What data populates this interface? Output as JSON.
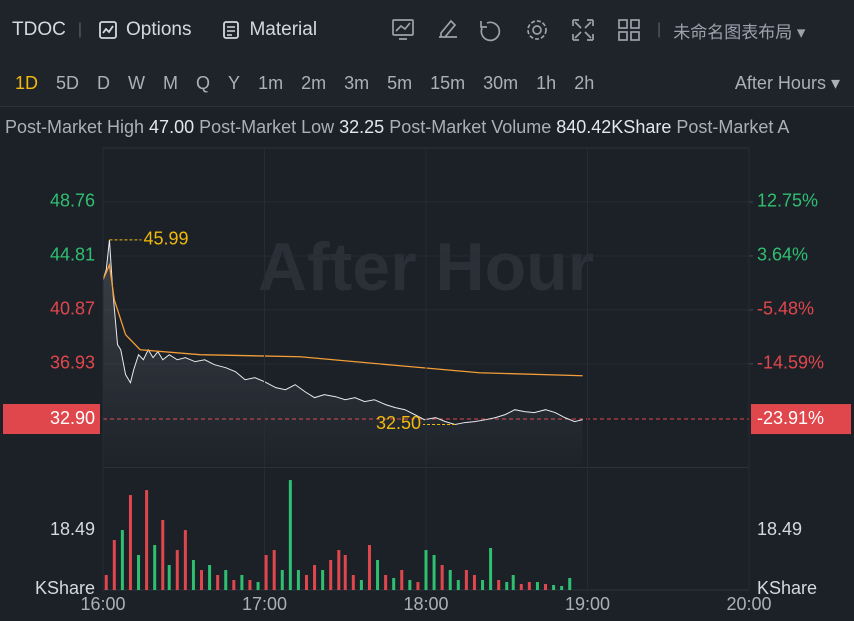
{
  "toolbar": {
    "symbol": "TDOC",
    "options": "Options",
    "material": "Material",
    "layout": "未命名图表布局"
  },
  "timeframes": [
    {
      "label": "1D",
      "selected": true
    },
    {
      "label": "5D"
    },
    {
      "label": "D"
    },
    {
      "label": "W"
    },
    {
      "label": "M"
    },
    {
      "label": "Q"
    },
    {
      "label": "Y"
    },
    {
      "label": "1m"
    },
    {
      "label": "2m"
    },
    {
      "label": "3m"
    },
    {
      "label": "5m"
    },
    {
      "label": "15m"
    },
    {
      "label": "30m"
    },
    {
      "label": "1h"
    },
    {
      "label": "2h"
    }
  ],
  "session": "After Hours",
  "stats": [
    {
      "label": "Post-Market High",
      "value": "47.00"
    },
    {
      "label": "Post-Market Low",
      "value": "32.25"
    },
    {
      "label": "Post-Market Volume",
      "value": "840.42KShare"
    },
    {
      "label": "Post-Market A"
    }
  ],
  "chart_data": [
    {
      "type": "line",
      "watermark": "After Hour",
      "grid": true,
      "xlim": [
        16,
        20
      ],
      "ylim": [
        29.54,
        52.7
      ],
      "yticks": [
        48.76,
        44.81,
        40.87,
        36.93
      ],
      "y2lim": [
        -31.67,
        21.86
      ],
      "y2ticks": [
        {
          "value": 12.75,
          "label": "12.75%"
        },
        {
          "value": 3.64,
          "label": "3.64%"
        },
        {
          "value": -5.48,
          "label": "-5.48%"
        },
        {
          "value": -14.59,
          "label": "-14.59%"
        }
      ],
      "last": {
        "value": 32.9,
        "label": "32.90"
      },
      "last_change": {
        "value": -23.91,
        "label": "-23.91%"
      },
      "series": [
        {
          "color": "#e8eaed",
          "x": [
            16.0,
            16.02,
            16.04,
            16.06,
            16.09,
            16.11,
            16.14,
            16.17,
            16.19,
            16.22,
            16.25,
            16.28,
            16.31,
            16.34,
            16.37,
            16.41,
            16.46,
            16.51,
            16.57,
            16.63,
            16.69,
            16.76,
            16.82,
            16.88,
            16.94,
            17.0,
            17.07,
            17.13,
            17.19,
            17.25,
            17.31,
            17.37,
            17.44,
            17.5,
            17.56,
            17.62,
            17.68,
            17.75,
            17.81,
            17.87,
            17.93,
            17.99,
            18.06,
            18.12,
            18.18,
            18.24,
            18.3,
            18.37,
            18.43,
            18.49,
            18.55,
            18.61,
            18.67,
            18.74,
            18.8,
            18.86,
            18.92,
            18.97
          ],
          "values": [
            43.07,
            43.8,
            45.99,
            42.34,
            38.33,
            37.96,
            36.14,
            35.55,
            36.5,
            37.6,
            37.23,
            37.96,
            37.38,
            37.82,
            37.23,
            37.6,
            37.23,
            37.38,
            37.09,
            37.23,
            36.87,
            36.65,
            36.36,
            35.77,
            35.92,
            35.63,
            35.19,
            35.04,
            35.41,
            34.9,
            34.46,
            34.68,
            34.53,
            34.31,
            34.46,
            34.17,
            34.31,
            33.95,
            33.73,
            33.58,
            33.22,
            32.85,
            33.0,
            32.71,
            32.5,
            32.64,
            32.71,
            32.85,
            33.0,
            33.22,
            33.58,
            33.44,
            33.37,
            33.58,
            33.37,
            33.0,
            32.71,
            32.85
          ]
        },
        {
          "color": "#f29d38",
          "x": [
            16.0,
            16.04,
            16.07,
            16.14,
            16.23,
            16.6,
            17.22,
            17.84,
            18.33,
            18.97
          ],
          "values": [
            43.07,
            44.16,
            41.61,
            39.06,
            37.96,
            37.6,
            37.45,
            36.79,
            36.28,
            36.06
          ]
        }
      ],
      "annotations": [
        {
          "text": "45.99",
          "x": 16.04,
          "y": 45.99
        },
        {
          "text": "32.50",
          "x": 18.18,
          "y": 32.5
        }
      ]
    },
    {
      "type": "bar",
      "xlim": [
        16,
        20
      ],
      "xticks": [
        {
          "value": 16,
          "label": "16:00"
        },
        {
          "value": 17,
          "label": "17:00"
        },
        {
          "value": 18,
          "label": "18:00"
        },
        {
          "value": 19,
          "label": "19:00"
        },
        {
          "value": 20,
          "label": "20:00"
        }
      ],
      "ylim": [
        0,
        36.98
      ],
      "yticks": [
        18.49
      ],
      "y2ticks": [
        18.49
      ],
      "ylabel": "KShare",
      "y2label": "KShare",
      "series": [
        {
          "color": "#e0474c",
          "x": [
            16.02,
            16.07,
            16.17,
            16.27,
            16.37,
            16.46,
            16.51,
            16.61,
            16.71,
            16.81,
            16.91,
            17.01,
            17.06,
            17.26,
            17.31,
            17.41,
            17.46,
            17.5,
            17.55,
            17.65,
            17.75,
            17.85,
            17.95,
            18.1,
            18.25,
            18.3,
            18.45,
            18.59,
            18.64,
            18.74
          ],
          "values": [
            4.62,
            15.4,
            29.26,
            30.8,
            21.56,
            12.32,
            18.48,
            6.16,
            4.62,
            3.08,
            3.08,
            10.78,
            12.32,
            4.62,
            7.7,
            9.24,
            12.32,
            10.78,
            4.62,
            13.86,
            4.62,
            6.16,
            2.46,
            7.7,
            6.16,
            4.62,
            3.08,
            1.85,
            2.46,
            1.85
          ]
        },
        {
          "color": "#2fbf71",
          "x": [
            16.12,
            16.22,
            16.32,
            16.41,
            16.56,
            16.66,
            16.76,
            16.86,
            16.96,
            17.11,
            17.16,
            17.21,
            17.36,
            17.6,
            17.7,
            17.8,
            17.9,
            18.0,
            18.05,
            18.15,
            18.2,
            18.35,
            18.4,
            18.5,
            18.54,
            18.69,
            18.79,
            18.84,
            18.89
          ],
          "values": [
            18.48,
            10.78,
            13.86,
            7.7,
            9.24,
            7.7,
            6.16,
            4.62,
            2.46,
            6.16,
            33.88,
            6.16,
            6.16,
            3.08,
            9.24,
            3.7,
            3.08,
            12.32,
            10.78,
            6.16,
            3.08,
            3.08,
            12.94,
            2.46,
            4.62,
            2.46,
            1.54,
            1.23,
            3.7
          ]
        }
      ]
    }
  ]
}
